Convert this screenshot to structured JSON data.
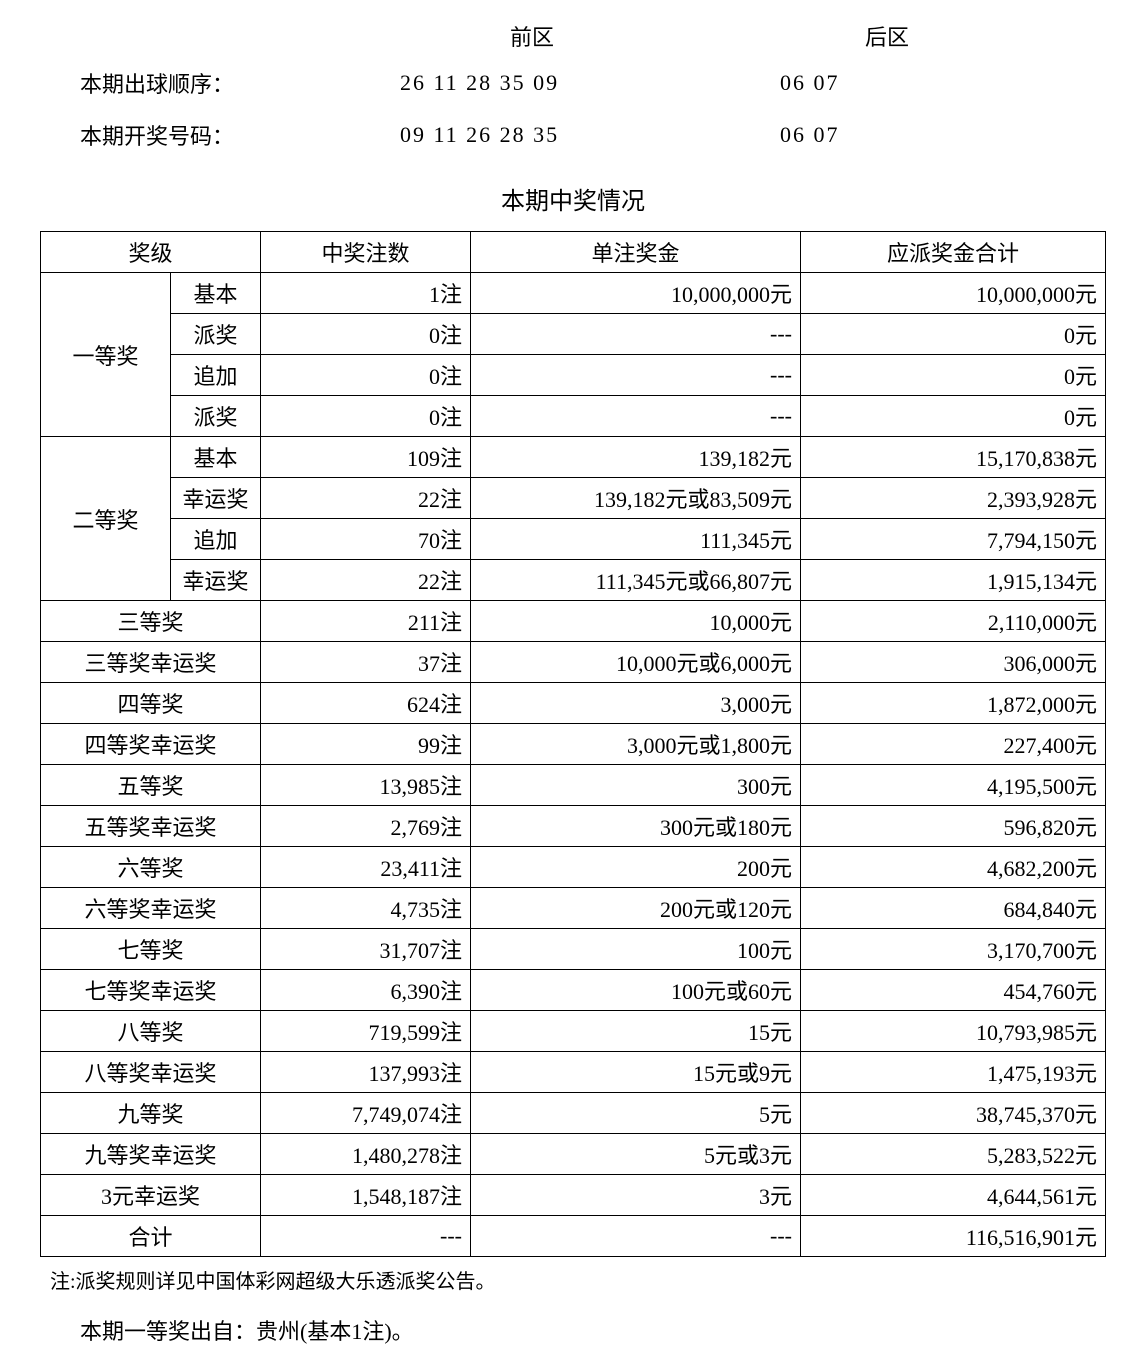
{
  "header": {
    "front_label": "前区",
    "back_label": "后区",
    "draw_order_label": "本期出球顺序：",
    "draw_order_front": "26 11 28 35 09",
    "draw_order_back": "06 07",
    "winning_label": "本期开奖号码：",
    "winning_front": "09 11 26 28 35",
    "winning_back": "06 07"
  },
  "section_title": "本期中奖情况",
  "table": {
    "headers": {
      "level": "奖级",
      "count": "中奖注数",
      "prize": "单注奖金",
      "total": "应派奖金合计"
    },
    "groups": [
      {
        "main": "一等奖",
        "rows": [
          {
            "sub": "基本",
            "count": "1注",
            "prize": "10,000,000元",
            "total": "10,000,000元"
          },
          {
            "sub": "派奖",
            "count": "0注",
            "prize": "---",
            "total": "0元"
          },
          {
            "sub": "追加",
            "count": "0注",
            "prize": "---",
            "total": "0元"
          },
          {
            "sub": "派奖",
            "count": "0注",
            "prize": "---",
            "total": "0元"
          }
        ]
      },
      {
        "main": "二等奖",
        "rows": [
          {
            "sub": "基本",
            "count": "109注",
            "prize": "139,182元",
            "total": "15,170,838元"
          },
          {
            "sub": "幸运奖",
            "count": "22注",
            "prize": "139,182元或83,509元",
            "total": "2,393,928元"
          },
          {
            "sub": "追加",
            "count": "70注",
            "prize": "111,345元",
            "total": "7,794,150元"
          },
          {
            "sub": "幸运奖",
            "count": "22注",
            "prize": "111,345元或66,807元",
            "total": "1,915,134元"
          }
        ]
      }
    ],
    "simple_rows": [
      {
        "level": "三等奖",
        "count": "211注",
        "prize": "10,000元",
        "total": "2,110,000元"
      },
      {
        "level": "三等奖幸运奖",
        "count": "37注",
        "prize": "10,000元或6,000元",
        "total": "306,000元"
      },
      {
        "level": "四等奖",
        "count": "624注",
        "prize": "3,000元",
        "total": "1,872,000元"
      },
      {
        "level": "四等奖幸运奖",
        "count": "99注",
        "prize": "3,000元或1,800元",
        "total": "227,400元"
      },
      {
        "level": "五等奖",
        "count": "13,985注",
        "prize": "300元",
        "total": "4,195,500元"
      },
      {
        "level": "五等奖幸运奖",
        "count": "2,769注",
        "prize": "300元或180元",
        "total": "596,820元"
      },
      {
        "level": "六等奖",
        "count": "23,411注",
        "prize": "200元",
        "total": "4,682,200元"
      },
      {
        "level": "六等奖幸运奖",
        "count": "4,735注",
        "prize": "200元或120元",
        "total": "684,840元"
      },
      {
        "level": "七等奖",
        "count": "31,707注",
        "prize": "100元",
        "total": "3,170,700元"
      },
      {
        "level": "七等奖幸运奖",
        "count": "6,390注",
        "prize": "100元或60元",
        "total": "454,760元"
      },
      {
        "level": "八等奖",
        "count": "719,599注",
        "prize": "15元",
        "total": "10,793,985元"
      },
      {
        "level": "八等奖幸运奖",
        "count": "137,993注",
        "prize": "15元或9元",
        "total": "1,475,193元"
      },
      {
        "level": "九等奖",
        "count": "7,749,074注",
        "prize": "5元",
        "total": "38,745,370元"
      },
      {
        "level": "九等奖幸运奖",
        "count": "1,480,278注",
        "prize": "5元或3元",
        "total": "5,283,522元"
      },
      {
        "level": "3元幸运奖",
        "count": "1,548,187注",
        "prize": "3元",
        "total": "4,644,561元"
      },
      {
        "level": "合计",
        "count": "---",
        "prize": "---",
        "total": "116,516,901元"
      }
    ]
  },
  "footer": {
    "note": "注:派奖规则详见中国体彩网超级大乐透派奖公告。",
    "location": "本期一等奖出自：贵州(基本1注)。"
  },
  "style": {
    "font_family": "SimSun",
    "font_size_body": 22,
    "font_size_title": 24,
    "font_size_note": 20,
    "text_color": "#000000",
    "background_color": "#ffffff",
    "border_color": "#000000",
    "border_width": 1.5
  }
}
